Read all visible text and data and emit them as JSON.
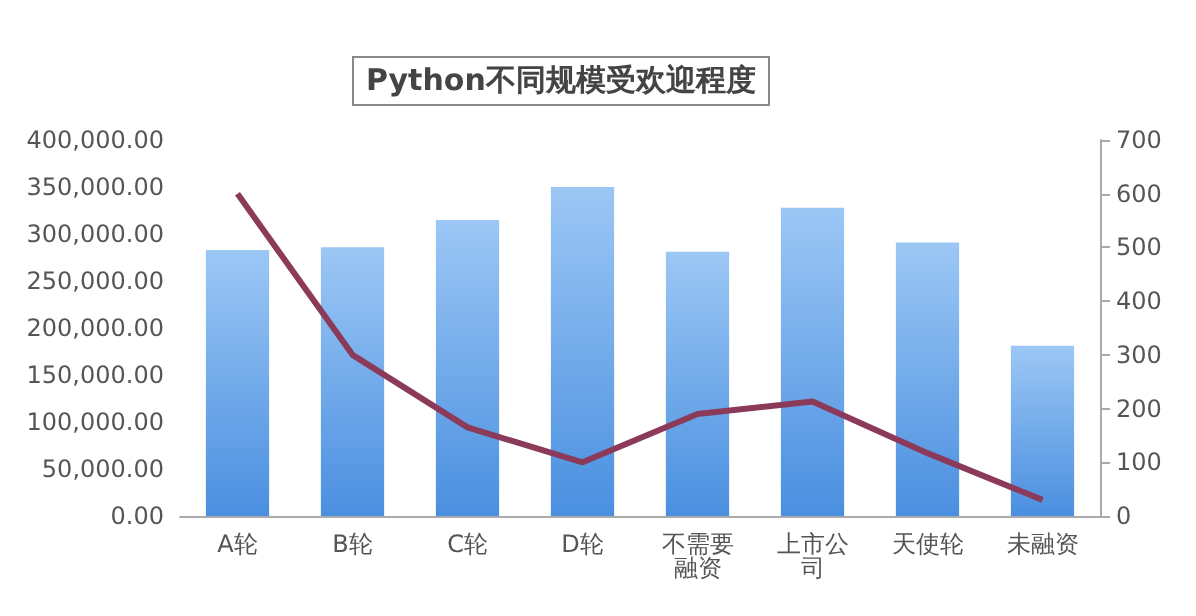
{
  "chart_data": {
    "type": "bar",
    "title": "Python不同规模受欢迎程度",
    "categories": [
      "A轮",
      "B轮",
      "C轮",
      "D轮",
      "不需要融资",
      "上市公司",
      "天使轮",
      "未融资"
    ],
    "series": [
      {
        "color": "#4a8fe0",
        "values": [
          283000,
          286000,
          315000,
          350000,
          281000,
          328000,
          291000,
          181000
        ]
      },
      {
        "type": "line",
        "axis": "y2",
        "color": "#8b3a5a",
        "values": [
          600,
          300,
          165,
          100,
          190,
          213,
          117,
          30
        ]
      }
    ],
    "ylim": [
      0,
      400000
    ],
    "yticks": [
      {
        "value": 0,
        "label": "0.00"
      },
      {
        "value": 50000,
        "label": "50,000.00"
      },
      {
        "value": 100000,
        "label": "100,000.00"
      },
      {
        "value": 150000,
        "label": "150,000.00"
      },
      {
        "value": 200000,
        "label": "200,000.00"
      },
      {
        "value": 250000,
        "label": "250,000.00"
      },
      {
        "value": 300000,
        "label": "300,000.00"
      },
      {
        "value": 350000,
        "label": "350,000.00"
      },
      {
        "value": 400000,
        "label": "400,000.00"
      }
    ],
    "y2lim": [
      0,
      700
    ],
    "y2ticks": [
      0,
      100,
      200,
      300,
      400,
      500,
      600,
      700
    ],
    "grid": false,
    "marker": "none"
  }
}
